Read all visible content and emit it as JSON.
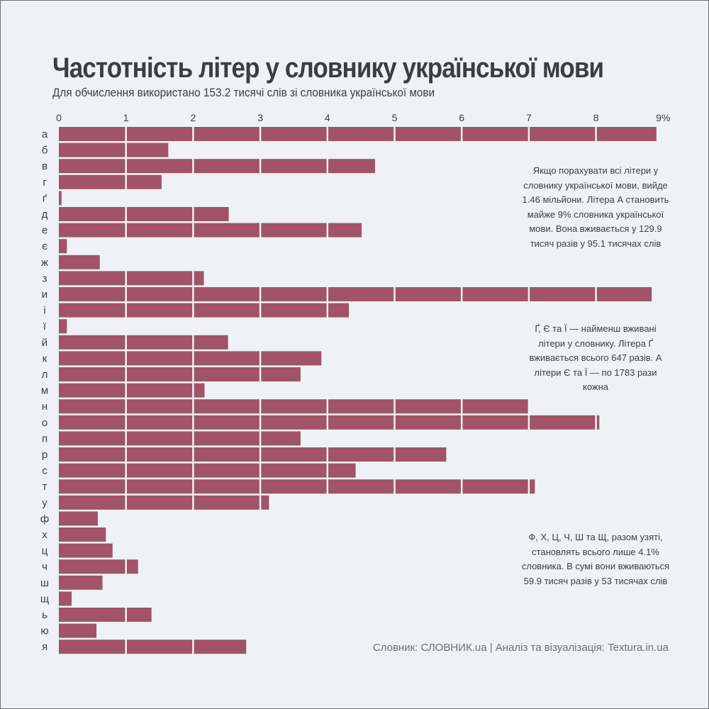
{
  "title": "Частотність літер у словнику української мови",
  "subtitle": "Для обчислення використано 153.2 тисячі слів зі словника української мови",
  "annotations": {
    "letter_a": "Якщо порахувати всі літери у словнику української мови, вийде 1.46 мільйони. Літера А становить майже 9% словника української мови. Вона вживається у 129.9 тисяч разів у 95.1 тисячах слів",
    "rare_letters": "Ґ, Є та Ї — найменш вживані літери у словнику. Літера Ґ вживається всього 647 разів. А літери Є та Ї — по 1783 рази кожна",
    "group_letters": "Ф, Х, Ц, Ч, Ш та Щ, разом узяті, становлять всього лише 4.1% словника. В сумі вони вживаються 59.9 тисяч разів у 53 тисячах слів"
  },
  "source": "Словник: СЛОВНИК.ua | Аналіз та візуалізація: Textura.in.ua",
  "colors": {
    "background": "#eff2f5",
    "bar": "#a05369",
    "grid": "#eff2f5",
    "text": "#3a3d46"
  },
  "chart_data": {
    "type": "bar",
    "orientation": "horizontal",
    "axis_position": "top",
    "xlim": [
      0,
      9
    ],
    "x_ticks": [
      0,
      1,
      2,
      3,
      4,
      5,
      6,
      7,
      8,
      9
    ],
    "x_tick_labels": [
      "0",
      "1",
      "2",
      "3",
      "4",
      "5",
      "6",
      "7",
      "8",
      "9%"
    ],
    "categories": [
      "а",
      "б",
      "в",
      "г",
      "ґ",
      "д",
      "е",
      "є",
      "ж",
      "з",
      "и",
      "і",
      "ї",
      "й",
      "к",
      "л",
      "м",
      "н",
      "о",
      "п",
      "р",
      "с",
      "т",
      "у",
      "ф",
      "х",
      "ц",
      "ч",
      "ш",
      "щ",
      "ь",
      "ю",
      "я"
    ],
    "values": [
      8.9,
      1.63,
      4.71,
      1.53,
      0.04,
      2.53,
      4.51,
      0.12,
      0.61,
      2.16,
      8.83,
      4.32,
      0.12,
      2.52,
      3.91,
      3.6,
      2.17,
      6.99,
      8.05,
      3.6,
      5.77,
      4.42,
      7.09,
      3.13,
      0.58,
      0.7,
      0.8,
      1.18,
      0.65,
      0.19,
      1.38,
      0.56,
      2.79
    ],
    "grid": true
  }
}
